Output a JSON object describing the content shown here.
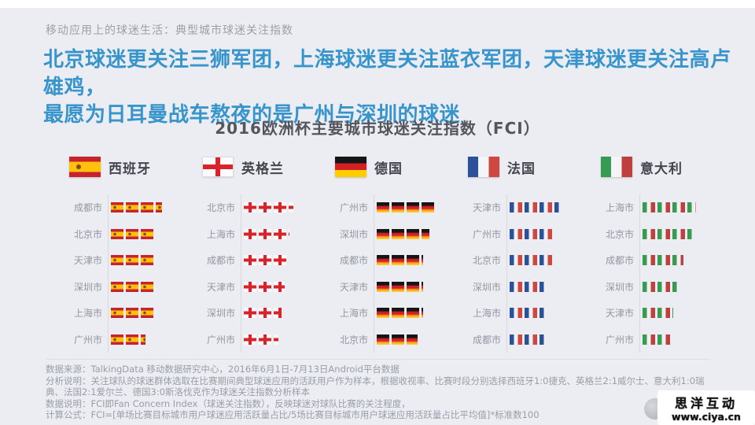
{
  "page": {
    "kicker": "移动应用上的球迷生活：典型城市球迷关注指数",
    "headline": {
      "line1": "北京球迷更关注三狮军团，上海球迷更关注蓝衣军团，天津球迷更关注高卢雄鸡，",
      "line2": "最愿为日耳曼战车熬夜的是广州与深圳的球迷"
    },
    "colors": {
      "headline_blue": "#3795cb",
      "background": "#ecedf3",
      "title_gray": "#55555e",
      "label_gray": "#9296a0"
    }
  },
  "chart_data": {
    "type": "bar",
    "subtype": "pictogram (repeated national-flag icons as bar fill)",
    "title": "2016欧洲杯主要城市球迷关注指数（FCI）",
    "value_unit": "flag-units (1 = one flag icon, estimated from bar length)",
    "legend_position": "column headers with country flag",
    "grid": false,
    "groups": [
      {
        "country": "西班牙",
        "flag": "spain",
        "flag_colors": [
          "#c8222e",
          "#ffc10a"
        ],
        "cities": [
          {
            "name": "成都市",
            "value": 3.4
          },
          {
            "name": "北京市",
            "value": 3.0
          },
          {
            "name": "天津市",
            "value": 2.9
          },
          {
            "name": "深圳市",
            "value": 2.85
          },
          {
            "name": "上海市",
            "value": 2.85
          },
          {
            "name": "广州市",
            "value": 2.3
          }
        ]
      },
      {
        "country": "英格兰",
        "flag": "england",
        "flag_colors": [
          "#ffffff",
          "#d8232a"
        ],
        "cities": [
          {
            "name": "北京市",
            "value": 3.3
          },
          {
            "name": "上海市",
            "value": 3.05
          },
          {
            "name": "成都市",
            "value": 2.95
          },
          {
            "name": "天津市",
            "value": 2.75
          },
          {
            "name": "深圳市",
            "value": 2.55
          },
          {
            "name": "广州市",
            "value": 2.3
          }
        ]
      },
      {
        "country": "德国",
        "flag": "germany",
        "flag_colors": [
          "#151515",
          "#d41f26",
          "#ffcc00"
        ],
        "cities": [
          {
            "name": "广州市",
            "value": 3.85
          },
          {
            "name": "深圳市",
            "value": 3.5
          },
          {
            "name": "成都市",
            "value": 3.1
          },
          {
            "name": "天津市",
            "value": 3.1
          },
          {
            "name": "上海市",
            "value": 3.1
          },
          {
            "name": "北京市",
            "value": 2.75
          }
        ]
      },
      {
        "country": "法国",
        "flag": "france",
        "flag_colors": [
          "#2b5298",
          "#ffffff",
          "#cf4840"
        ],
        "cities": [
          {
            "name": "天津市",
            "value": 3.35
          },
          {
            "name": "广州市",
            "value": 3.0
          },
          {
            "name": "北京市",
            "value": 3.0
          },
          {
            "name": "深圳市",
            "value": 2.4
          },
          {
            "name": "上海市",
            "value": 2.4
          },
          {
            "name": "成都市",
            "value": 2.4
          }
        ]
      },
      {
        "country": "意大利",
        "flag": "italy",
        "flag_colors": [
          "#379b52",
          "#ffffff",
          "#bf403c"
        ],
        "cities": [
          {
            "name": "上海市",
            "value": 3.6
          },
          {
            "name": "北京市",
            "value": 3.3
          },
          {
            "name": "成都市",
            "value": 2.75
          },
          {
            "name": "深圳市",
            "value": 2.4
          },
          {
            "name": "天津市",
            "value": 2.05
          },
          {
            "name": "广州市",
            "value": 1.95
          }
        ]
      }
    ]
  },
  "footnotes": [
    "数据来源：TalkingData 移动数据研究中心，2016年6月1日-7月13日Android平台数据",
    "分析说明：关注球队的球迷群体选取在比赛期间典型球迷应用的活跃用户作为样本，根据收视率、比赛时段分别选择西班牙1:0捷克、英格兰2:1威尔士、意大利1:0瑞典、法国2:1爱尔兰、德国3:0斯洛伐克作为球迷关注指数分析样本",
    "数据说明：FCI即Fan Concern Index（球迷关注指数），反映球迷对球队比赛的关注程度，",
    "计算公式：FCI=[单场比赛目标城市用户球迷应用活跃量占比/5场比赛目标城市用户球迷应用活跃量占比平均值]*标准数100"
  ],
  "watermark": {
    "name": "思洋互动",
    "url": "www.ciya.cn"
  }
}
